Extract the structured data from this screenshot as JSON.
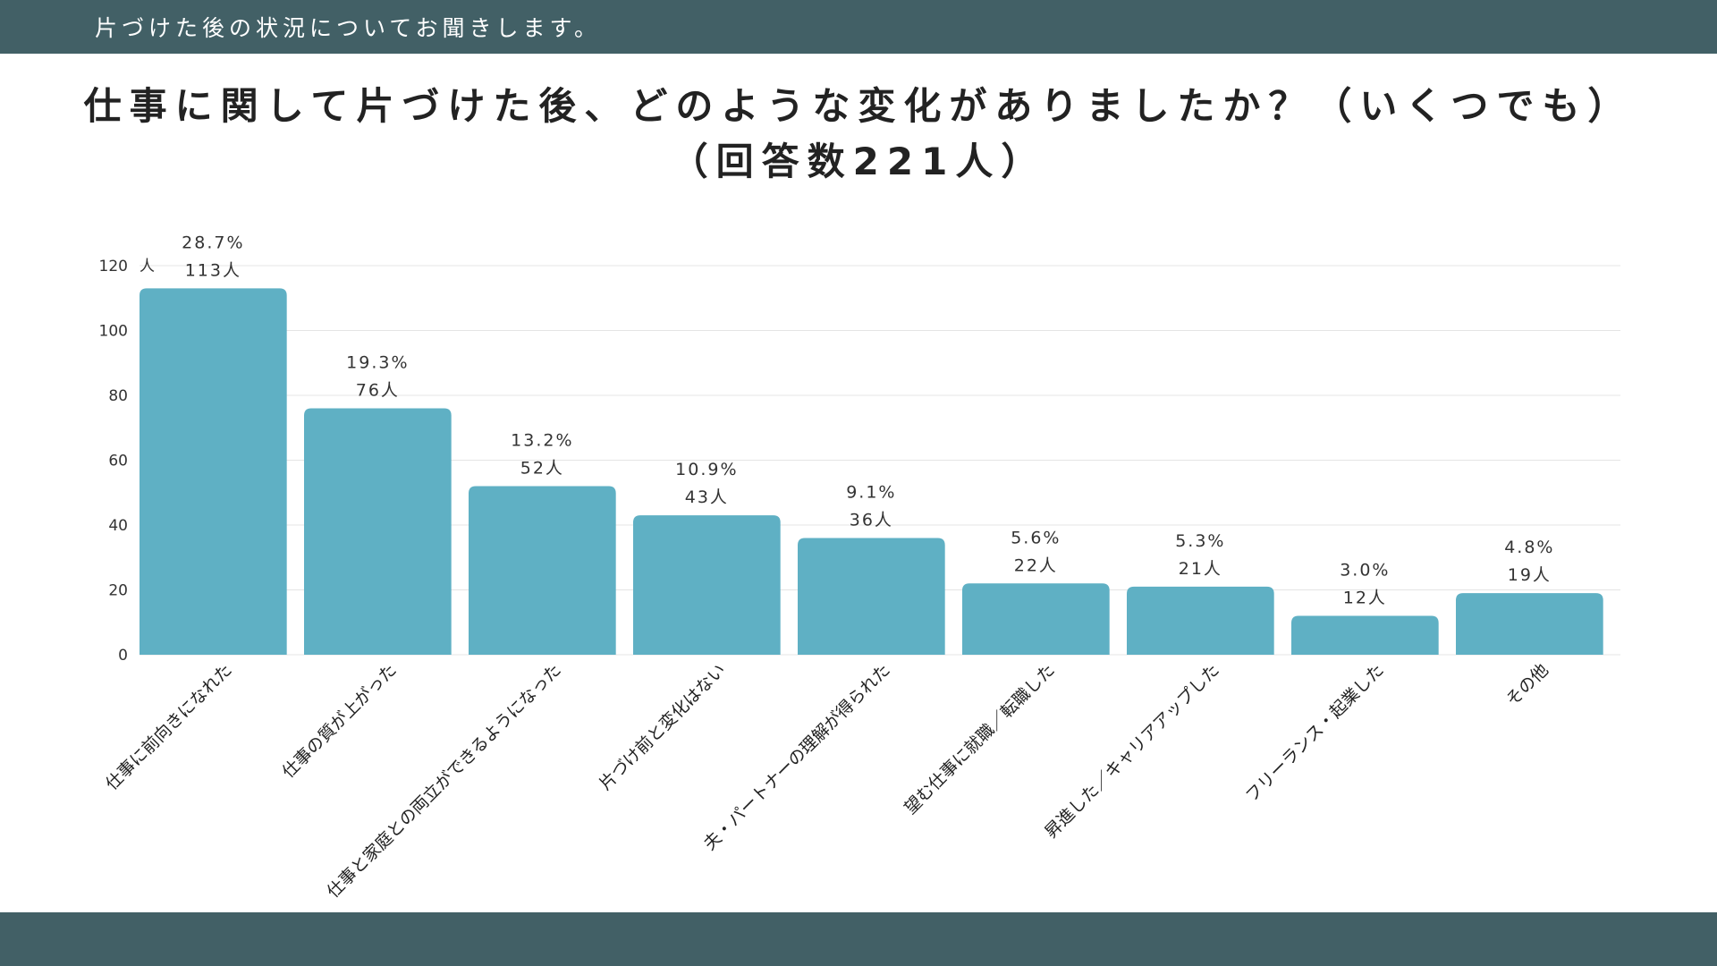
{
  "header": {
    "subtitle": "片づけた後の状況についてお聞きします。"
  },
  "title_lines": [
    "仕事に関して片づけた後、どのような変化がありましたか？（いくつでも）",
    "（回答数221人）"
  ],
  "colors": {
    "bar": "#5fb0c4",
    "header_bg": "#426066",
    "grid": "#e4e4e4"
  },
  "chart_data": {
    "type": "bar",
    "title": "仕事に関して片づけた後、どのような変化がありましたか？（いくつでも）（回答数221人）",
    "ylabel": "人",
    "xlabel": "",
    "ylim": [
      0,
      120
    ],
    "yticks": [
      0,
      20,
      40,
      60,
      80,
      100,
      120
    ],
    "grid": true,
    "categories": [
      "仕事に前向きになれた",
      "仕事の質が上がった",
      "仕事と家庭との両立ができるようになった",
      "片づけ前と変化はない",
      "夫・パートナーの理解が得られた",
      "望む仕事に就職／転職した",
      "昇進した／キャリアアップした",
      "フリーランス・起業した",
      "その他"
    ],
    "values": [
      113,
      76,
      52,
      43,
      36,
      22,
      21,
      12,
      19
    ],
    "count_labels": [
      "113人",
      "76人",
      "52人",
      "43人",
      "36人",
      "22人",
      "21人",
      "12人",
      "19人"
    ],
    "percent_labels": [
      "28.7%",
      "19.3%",
      "13.2%",
      "10.9%",
      "9.1%",
      "5.6%",
      "5.3%",
      "3.0%",
      "4.8%"
    ]
  }
}
